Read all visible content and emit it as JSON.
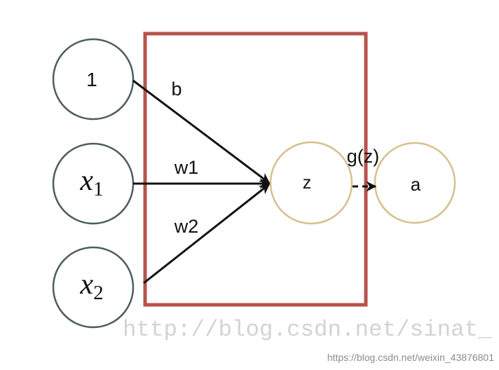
{
  "nodes": {
    "bias": {
      "label": "1"
    },
    "x1": {
      "variable": "x",
      "subscript": "1"
    },
    "x2": {
      "variable": "x",
      "subscript": "2"
    },
    "z": {
      "label": "z"
    },
    "a": {
      "label": "a"
    }
  },
  "edges": {
    "bias_weight": "b",
    "x1_weight": "w1",
    "x2_weight": "w2",
    "activation": "g(z)"
  },
  "watermarks": {
    "large": "http://blog.csdn.net/sinat_",
    "small": "https://blog.csdn.net/weixin_43876801"
  },
  "colors": {
    "background": "#ffffff",
    "input_node": "#4d5d61",
    "neuron_node": "#d8bf8c",
    "neuron_box": "#b7524d",
    "arrow": "#111111",
    "watermark_large": "#d3d3d3",
    "watermark_small": "#8c8c8c"
  }
}
